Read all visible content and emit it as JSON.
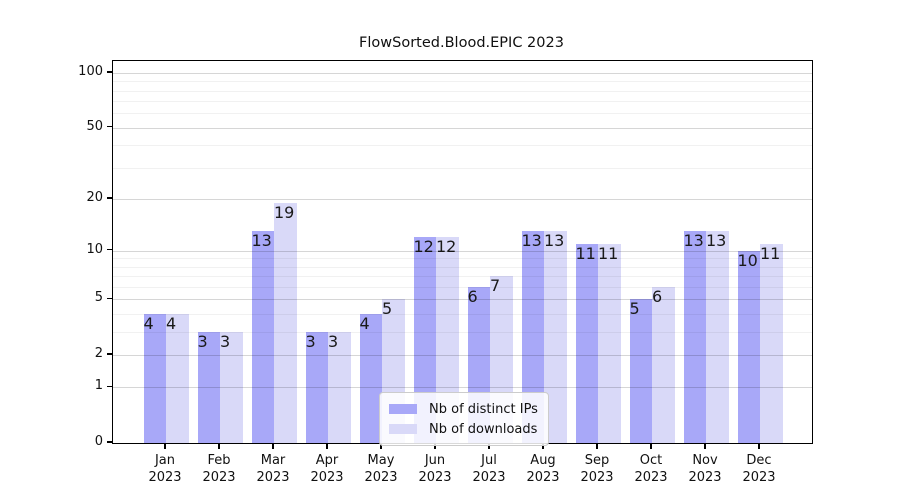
{
  "chart_data": {
    "type": "bar",
    "title": "FlowSorted.Blood.EPIC 2023",
    "categories": [
      "Jan 2023",
      "Feb 2023",
      "Mar 2023",
      "Apr 2023",
      "May 2023",
      "Jun 2023",
      "Jul 2023",
      "Aug 2023",
      "Sep 2023",
      "Oct 2023",
      "Nov 2023",
      "Dec 2023"
    ],
    "series": [
      {
        "name": "Nb of distinct IPs",
        "color": "#a8a8f8",
        "values": [
          4,
          3,
          13,
          3,
          4,
          12,
          6,
          13,
          11,
          5,
          13,
          10
        ]
      },
      {
        "name": "Nb of downloads",
        "color": "#d9d9f8",
        "values": [
          4,
          3,
          19,
          3,
          5,
          12,
          7,
          13,
          11,
          6,
          13,
          11
        ]
      }
    ],
    "xlabel": "",
    "ylabel": "",
    "yscale": "log1p",
    "ylim": [
      0,
      100
    ],
    "yticks": [
      0,
      1,
      2,
      5,
      10,
      20,
      50,
      100
    ],
    "minor_gridlines": [
      3,
      4,
      6,
      7,
      8,
      9,
      30,
      40,
      60,
      70,
      80,
      90
    ],
    "grid": true,
    "legend_position": "lower center"
  }
}
